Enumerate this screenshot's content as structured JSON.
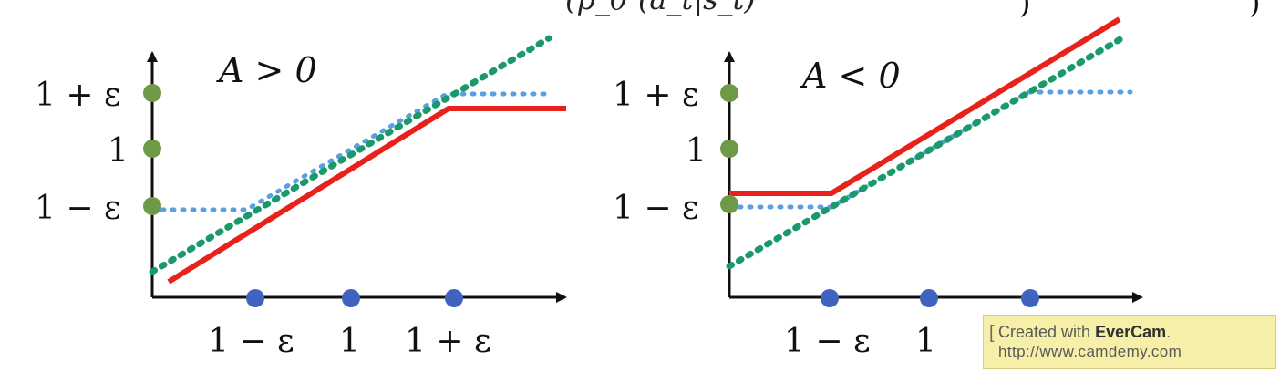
{
  "header": {
    "formula_fragment": "(p_θᵏ(a_t|s_t)"
  },
  "colors": {
    "red": "#e8221a",
    "green": "#1a9a6a",
    "blue": "#5aa0e0",
    "point_green": "#6e9a48",
    "point_blue": "#3f63bf",
    "axis": "#111111"
  },
  "chart_data": [
    {
      "type": "line",
      "title": "A > 0",
      "xticks": [
        "1 − ε",
        "1",
        "1 + ε"
      ],
      "yticks": [
        "1 + ε",
        "1",
        "1 − ε"
      ],
      "series": [
        {
          "color": "red",
          "style": "solid",
          "points": [
            [
              0.1,
              0.05
            ],
            [
              1.3,
              1.25
            ],
            [
              1.6,
              1.25
            ]
          ]
        },
        {
          "color": "blue",
          "style": "dotted",
          "points": [
            [
              0.0,
              0.85
            ],
            [
              1.2,
              0.85
            ],
            [
              1.7,
              1.25
            ],
            [
              1.9,
              1.25
            ]
          ]
        },
        {
          "color": "green",
          "style": "dotted",
          "points": [
            [
              0.0,
              0.4
            ],
            [
              2.0,
              1.6
            ]
          ]
        }
      ]
    },
    {
      "type": "line",
      "title": "A < 0",
      "xticks": [
        "1 − ε",
        "1"
      ],
      "yticks": [
        "1 + ε",
        "1",
        "1 − ε"
      ],
      "series": [
        {
          "color": "red",
          "style": "solid",
          "points": [
            [
              0.0,
              0.92
            ],
            [
              1.0,
              0.92
            ],
            [
              2.0,
              1.62
            ]
          ]
        },
        {
          "color": "blue",
          "style": "dotted",
          "points": [
            [
              0.0,
              0.85
            ],
            [
              1.0,
              0.85
            ],
            [
              1.8,
              1.25
            ],
            [
              2.0,
              1.25
            ]
          ]
        },
        {
          "color": "green",
          "style": "dotted",
          "points": [
            [
              0.0,
              0.4
            ],
            [
              2.0,
              1.58
            ]
          ]
        }
      ]
    }
  ],
  "watermark": {
    "line1_prefix": "Created with ",
    "brand": "EverCam",
    "line1_suffix": ".",
    "line2": "http://www.camdemy.com"
  }
}
